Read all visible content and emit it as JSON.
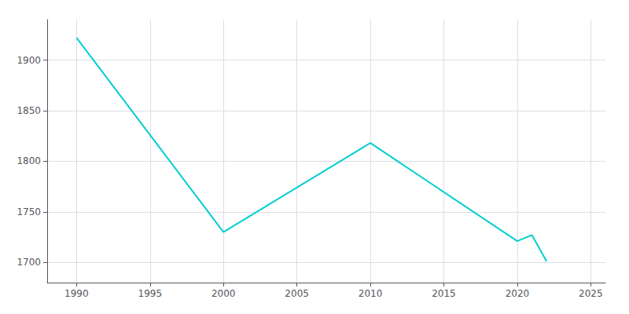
{
  "chart_data": {
    "type": "line",
    "x": [
      1990,
      2000,
      2010,
      2020,
      2021,
      2022
    ],
    "values": [
      1922,
      1730,
      1818,
      1721,
      1727,
      1701
    ],
    "color": "#00CED1",
    "xlim": [
      1988,
      2026
    ],
    "xticks": [
      1990,
      1995,
      2000,
      2005,
      2010,
      2015,
      2020,
      2025
    ],
    "ylim": [
      1680,
      1940
    ],
    "yticks": [
      1700,
      1750,
      1800,
      1850,
      1900
    ],
    "grid": true
  }
}
